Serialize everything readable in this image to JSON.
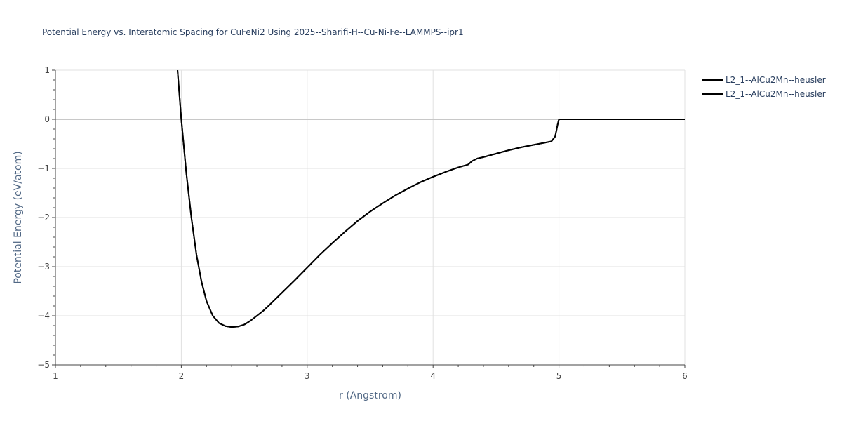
{
  "chart_data": {
    "type": "line",
    "title": "Potential Energy vs. Interatomic Spacing for CuFeNi2 Using 2025--Sharifi-H--Cu-Ni-Fe--LAMMPS--ipr1",
    "xlabel": "r (Angstrom)",
    "ylabel": "Potential Energy (eV/atom)",
    "xlim": [
      1,
      6
    ],
    "ylim": [
      -5,
      1
    ],
    "xticks": [
      "1",
      "2",
      "3",
      "4",
      "5",
      "6"
    ],
    "yticks": [
      "1",
      "0",
      "−1",
      "−2",
      "−3",
      "−4",
      "−5"
    ],
    "grid": true,
    "legend_position": "top-right",
    "line_color": "#000000",
    "series": [
      {
        "name": "L2_1--AlCu2Mn--heusler",
        "x": [
          1.97,
          2.0,
          2.04,
          2.08,
          2.12,
          2.16,
          2.2,
          2.25,
          2.3,
          2.35,
          2.4,
          2.45,
          2.5,
          2.55,
          2.6,
          2.65,
          2.7,
          2.8,
          2.9,
          3.0,
          3.1,
          3.2,
          3.3,
          3.4,
          3.5,
          3.6,
          3.7,
          3.8,
          3.9,
          4.0,
          4.1,
          4.2,
          4.28,
          4.31,
          4.35,
          4.4,
          4.5,
          4.6,
          4.7,
          4.8,
          4.9,
          4.94,
          4.97,
          4.99,
          5.0,
          5.5,
          6.0
        ],
        "y": [
          1.0,
          0.0,
          -1.1,
          -2.0,
          -2.75,
          -3.3,
          -3.7,
          -4.0,
          -4.15,
          -4.21,
          -4.23,
          -4.22,
          -4.18,
          -4.1,
          -4.0,
          -3.9,
          -3.78,
          -3.53,
          -3.28,
          -3.02,
          -2.76,
          -2.52,
          -2.29,
          -2.07,
          -1.88,
          -1.71,
          -1.55,
          -1.41,
          -1.28,
          -1.17,
          -1.07,
          -0.98,
          -0.92,
          -0.85,
          -0.8,
          -0.77,
          -0.7,
          -0.63,
          -0.57,
          -0.52,
          -0.47,
          -0.45,
          -0.35,
          -0.1,
          0.0,
          0.0,
          0.0
        ]
      },
      {
        "name": "L2_1--AlCu2Mn--heusler",
        "x": [
          1.97,
          2.0,
          2.04,
          2.08,
          2.12,
          2.16,
          2.2,
          2.25,
          2.3,
          2.35,
          2.4,
          2.45,
          2.5,
          2.55,
          2.6,
          2.65,
          2.7,
          2.8,
          2.9,
          3.0,
          3.1,
          3.2,
          3.3,
          3.4,
          3.5,
          3.6,
          3.7,
          3.8,
          3.9,
          4.0,
          4.1,
          4.2,
          4.28,
          4.31,
          4.35,
          4.4,
          4.5,
          4.6,
          4.7,
          4.8,
          4.9,
          4.94,
          4.97,
          4.99,
          5.0,
          5.5,
          6.0
        ],
        "y": [
          1.0,
          0.0,
          -1.1,
          -2.0,
          -2.75,
          -3.3,
          -3.7,
          -4.0,
          -4.15,
          -4.21,
          -4.23,
          -4.22,
          -4.18,
          -4.1,
          -4.0,
          -3.9,
          -3.78,
          -3.53,
          -3.28,
          -3.02,
          -2.76,
          -2.52,
          -2.29,
          -2.07,
          -1.88,
          -1.71,
          -1.55,
          -1.41,
          -1.28,
          -1.17,
          -1.07,
          -0.98,
          -0.92,
          -0.85,
          -0.8,
          -0.77,
          -0.7,
          -0.63,
          -0.57,
          -0.52,
          -0.47,
          -0.45,
          -0.35,
          -0.1,
          0.0,
          0.0,
          0.0
        ]
      }
    ]
  }
}
